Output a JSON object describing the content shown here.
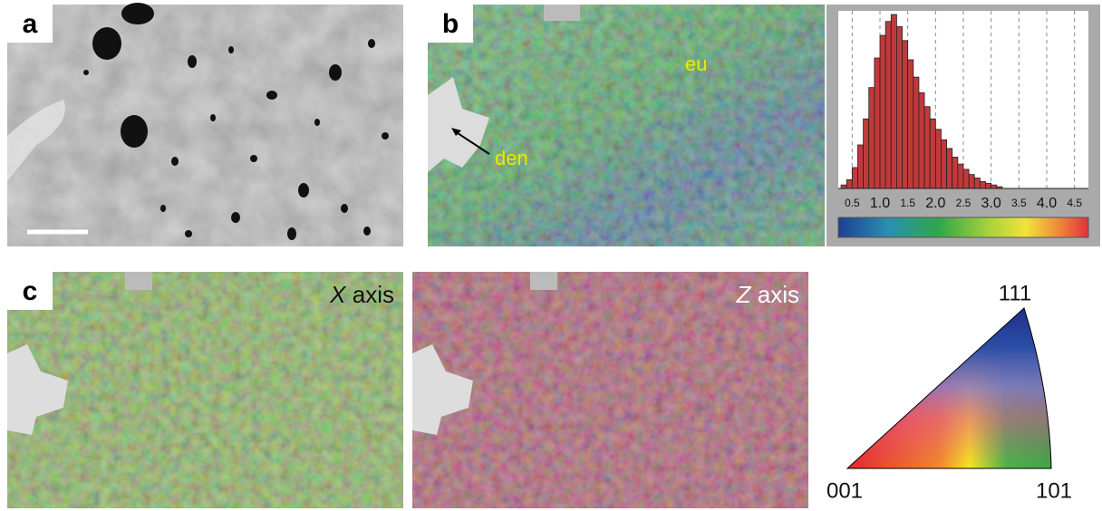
{
  "panel_a": {
    "label": "a"
  },
  "panel_b": {
    "label": "b",
    "annotations": {
      "eutectic": "eu",
      "dendrite": "den"
    },
    "histogram": {
      "type": "histogram",
      "bins": [
        0.3,
        0.4,
        0.5,
        0.6,
        0.7,
        0.8,
        0.9,
        1.0,
        1.1,
        1.2,
        1.3,
        1.4,
        1.5,
        1.6,
        1.7,
        1.8,
        1.9,
        2.0,
        2.1,
        2.2,
        2.3,
        2.4,
        2.5,
        2.6,
        2.7,
        2.8,
        2.9,
        3.0,
        3.1,
        3.2
      ],
      "counts": [
        2,
        5,
        12,
        25,
        40,
        58,
        75,
        88,
        96,
        100,
        93,
        85,
        74,
        64,
        55,
        47,
        40,
        34,
        28,
        23,
        18,
        14,
        11,
        8,
        6,
        4,
        3,
        2,
        1
      ],
      "color": "#c0393b",
      "xlim": [
        0.25,
        4.75
      ],
      "xticks": [
        0.5,
        {
          "value": 1.0,
          "label": "1.0"
        },
        1.5,
        {
          "value": 2.0,
          "label": "2.0"
        },
        2.5,
        {
          "value": 3.0,
          "label": "3.0"
        },
        3.5,
        {
          "value": 4.0,
          "label": "4.0"
        },
        4.5
      ],
      "grid": true
    }
  },
  "panel_c": {
    "label": "c",
    "maps": [
      {
        "letter": "X",
        "word": "axis"
      },
      {
        "letter": "Z",
        "word": "axis"
      }
    ],
    "triangle": {
      "top": "111",
      "left": "001",
      "right": "101"
    }
  }
}
